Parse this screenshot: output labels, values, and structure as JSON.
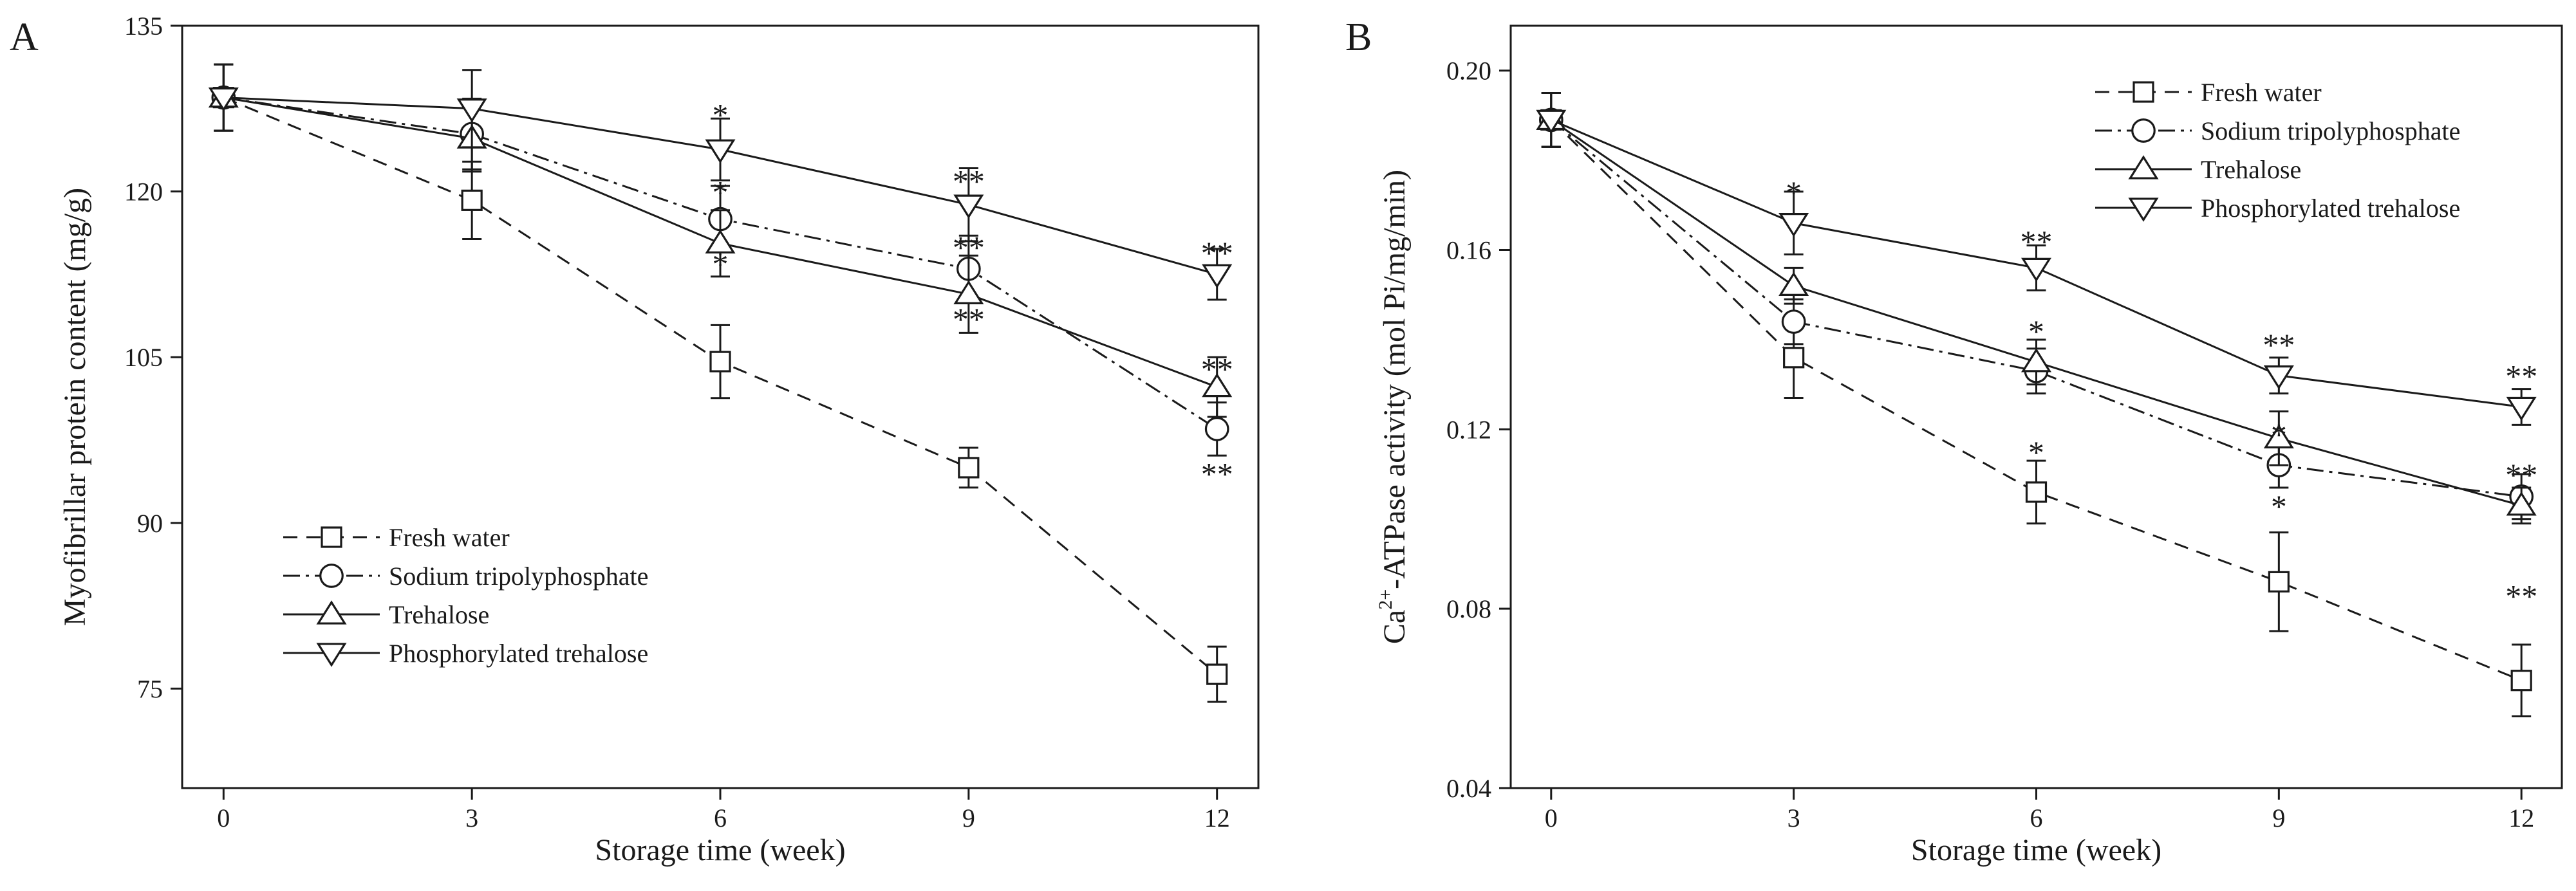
{
  "chart_data": [
    {
      "type": "line",
      "panel_label": "A",
      "xlabel": "Storage time (week)",
      "ylabel": "Myofibrillar protein content (mg/g)",
      "x": [
        0,
        3,
        6,
        9,
        12
      ],
      "xticks": [
        "0",
        "3",
        "6",
        "9",
        "12"
      ],
      "yticks": [
        "75",
        "90",
        "105",
        "120",
        "135"
      ],
      "xlim": [
        -0.5,
        12.5
      ],
      "ylim": [
        66,
        135
      ],
      "legend_position": "bottom-left",
      "series": [
        {
          "name": "Fresh water",
          "style": "dashed",
          "marker": "square",
          "values": [
            128.5,
            119.2,
            104.6,
            95.0,
            76.3
          ],
          "errors": [
            3.0,
            3.5,
            3.3,
            1.8,
            2.5
          ]
        },
        {
          "name": "Sodium tripolyphosphate",
          "style": "dashdot",
          "marker": "circle",
          "values": [
            128.5,
            125.2,
            117.5,
            113.0,
            98.5
          ],
          "errors": [
            3.0,
            3.2,
            3.0,
            3.0,
            2.4
          ]
        },
        {
          "name": "Trehalose",
          "style": "solid",
          "marker": "triangle-up",
          "values": [
            128.5,
            124.8,
            115.3,
            110.7,
            102.3
          ],
          "errors": [
            3.0,
            3.0,
            3.0,
            3.5,
            2.7
          ]
        },
        {
          "name": "Phosphorylated trehalose",
          "style": "solid",
          "marker": "triangle-down",
          "values": [
            128.5,
            127.5,
            123.8,
            118.8,
            112.5
          ],
          "errors": [
            3.0,
            3.5,
            2.8,
            3.3,
            2.3
          ]
        }
      ],
      "annotations": [
        {
          "text": "*",
          "x": 6,
          "y": 127.0
        },
        {
          "text": "*",
          "x": 6,
          "y": 120.0
        },
        {
          "text": "*",
          "x": 6,
          "y": 113.5
        },
        {
          "text": "**",
          "x": 9,
          "y": 121.0
        },
        {
          "text": "**",
          "x": 9,
          "y": 115.0
        },
        {
          "text": "**",
          "x": 9,
          "y": 108.5
        },
        {
          "text": "**",
          "x": 12,
          "y": 114.5
        },
        {
          "text": "**",
          "x": 12,
          "y": 104.0
        },
        {
          "text": "**",
          "x": 12,
          "y": 94.5
        }
      ]
    },
    {
      "type": "line",
      "panel_label": "B",
      "xlabel": "Storage time (week)",
      "ylabel_main": "Ca",
      "ylabel_sup": "2+",
      "ylabel_rest": "-ATPase activity (mol Pi/mg/min)",
      "x": [
        0,
        3,
        6,
        9,
        12
      ],
      "xticks": [
        "0",
        "3",
        "6",
        "9",
        "12"
      ],
      "yticks": [
        "0.04",
        "0.08",
        "0.12",
        "0.16",
        "0.20"
      ],
      "xlim": [
        -0.5,
        12.5
      ],
      "ylim": [
        0.04,
        0.21
      ],
      "legend_position": "top-right",
      "series": [
        {
          "name": "Fresh water",
          "style": "dashed",
          "marker": "square",
          "values": [
            0.189,
            0.136,
            0.106,
            0.086,
            0.064
          ],
          "errors": [
            0.006,
            0.009,
            0.007,
            0.011,
            0.008
          ]
        },
        {
          "name": "Sodium tripolyphosphate",
          "style": "dashdot",
          "marker": "circle",
          "values": [
            0.189,
            0.144,
            0.133,
            0.112,
            0.105
          ],
          "errors": [
            0.006,
            0.005,
            0.005,
            0.005,
            0.005
          ]
        },
        {
          "name": "Trehalose",
          "style": "solid",
          "marker": "triangle-up",
          "values": [
            0.189,
            0.152,
            0.135,
            0.118,
            0.103
          ],
          "errors": [
            0.006,
            0.004,
            0.005,
            0.006,
            0.004
          ]
        },
        {
          "name": "Phosphorylated trehalose",
          "style": "solid",
          "marker": "triangle-down",
          "values": [
            0.189,
            0.166,
            0.156,
            0.132,
            0.125
          ],
          "errors": [
            0.006,
            0.007,
            0.005,
            0.004,
            0.004
          ]
        }
      ],
      "annotations": [
        {
          "text": "*",
          "x": 3,
          "y": 0.173
        },
        {
          "text": "**",
          "x": 6,
          "y": 0.162
        },
        {
          "text": "*",
          "x": 6,
          "y": 0.142
        },
        {
          "text": "*",
          "x": 6,
          "y": 0.115
        },
        {
          "text": "**",
          "x": 9,
          "y": 0.139
        },
        {
          "text": "*",
          "x": 9,
          "y": 0.119
        },
        {
          "text": "*",
          "x": 9,
          "y": 0.103
        },
        {
          "text": "**",
          "x": 12,
          "y": 0.132
        },
        {
          "text": "**",
          "x": 12,
          "y": 0.11
        },
        {
          "text": "**",
          "x": 12,
          "y": 0.083
        }
      ]
    }
  ]
}
